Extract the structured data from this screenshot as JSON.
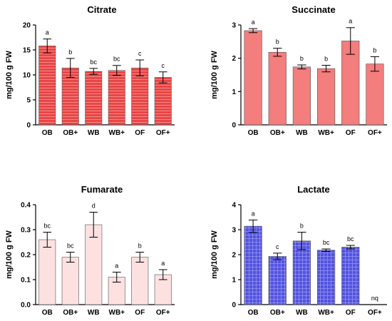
{
  "chart_data": [
    {
      "type": "bar",
      "title": "Citrate",
      "ylabel": "mg/100 g FW",
      "categories": [
        "OB",
        "OB+",
        "WB",
        "WB+",
        "OF",
        "OF+"
      ],
      "values": [
        15.8,
        11.4,
        10.7,
        10.9,
        11.4,
        9.5
      ],
      "errors": [
        1.4,
        1.9,
        0.6,
        1.0,
        1.6,
        1.1
      ],
      "letters": [
        "a",
        "b",
        "bc",
        "bc",
        "c",
        "c"
      ],
      "ylim": [
        0,
        20
      ],
      "yticks": [
        "0",
        "5",
        "10",
        "15",
        "20"
      ],
      "color": "#e84545",
      "pattern": "h-stripes"
    },
    {
      "type": "bar",
      "title": "Succinate",
      "ylabel": "mg/100 g FW",
      "categories": [
        "OB",
        "OB+",
        "WB",
        "WB+",
        "OF",
        "OF+"
      ],
      "values": [
        2.83,
        2.18,
        1.74,
        1.69,
        2.52,
        1.83
      ],
      "errors": [
        0.06,
        0.12,
        0.06,
        0.1,
        0.4,
        0.22
      ],
      "letters": [
        "a",
        "b",
        "b",
        "b",
        "a",
        "b"
      ],
      "ylim": [
        0,
        3
      ],
      "yticks": [
        "0",
        "1",
        "2",
        "3"
      ],
      "color": "#f47d7d",
      "pattern": "solid"
    },
    {
      "type": "bar",
      "title": "Fumarate",
      "ylabel": "mg/100 g FW",
      "categories": [
        "OB",
        "OB+",
        "WB",
        "WB+",
        "OF",
        "OF+"
      ],
      "values": [
        0.26,
        0.19,
        0.32,
        0.11,
        0.19,
        0.12
      ],
      "errors": [
        0.03,
        0.02,
        0.05,
        0.02,
        0.02,
        0.02
      ],
      "letters": [
        "bc",
        "bc",
        "d",
        "a",
        "b",
        "a"
      ],
      "ylim": [
        0,
        0.4
      ],
      "yticks": [
        "0.0",
        "0.1",
        "0.2",
        "0.3",
        "0.4"
      ],
      "color": "#fde0e0",
      "pattern": "solid"
    },
    {
      "type": "bar",
      "title": "Lactate",
      "ylabel": "mg/100 g FW",
      "categories": [
        "OB",
        "OB+",
        "WB",
        "WB+",
        "OF",
        "OF+"
      ],
      "values": [
        3.14,
        1.93,
        2.55,
        2.18,
        2.3,
        null
      ],
      "errors": [
        0.25,
        0.13,
        0.35,
        0.05,
        0.07,
        null
      ],
      "letters": [
        "a",
        "c",
        "b",
        "bc",
        "bc",
        "nq"
      ],
      "ylim": [
        0,
        4
      ],
      "yticks": [
        "0",
        "1",
        "2",
        "3",
        "4"
      ],
      "color": "#5353e0",
      "pattern": "grid"
    }
  ]
}
